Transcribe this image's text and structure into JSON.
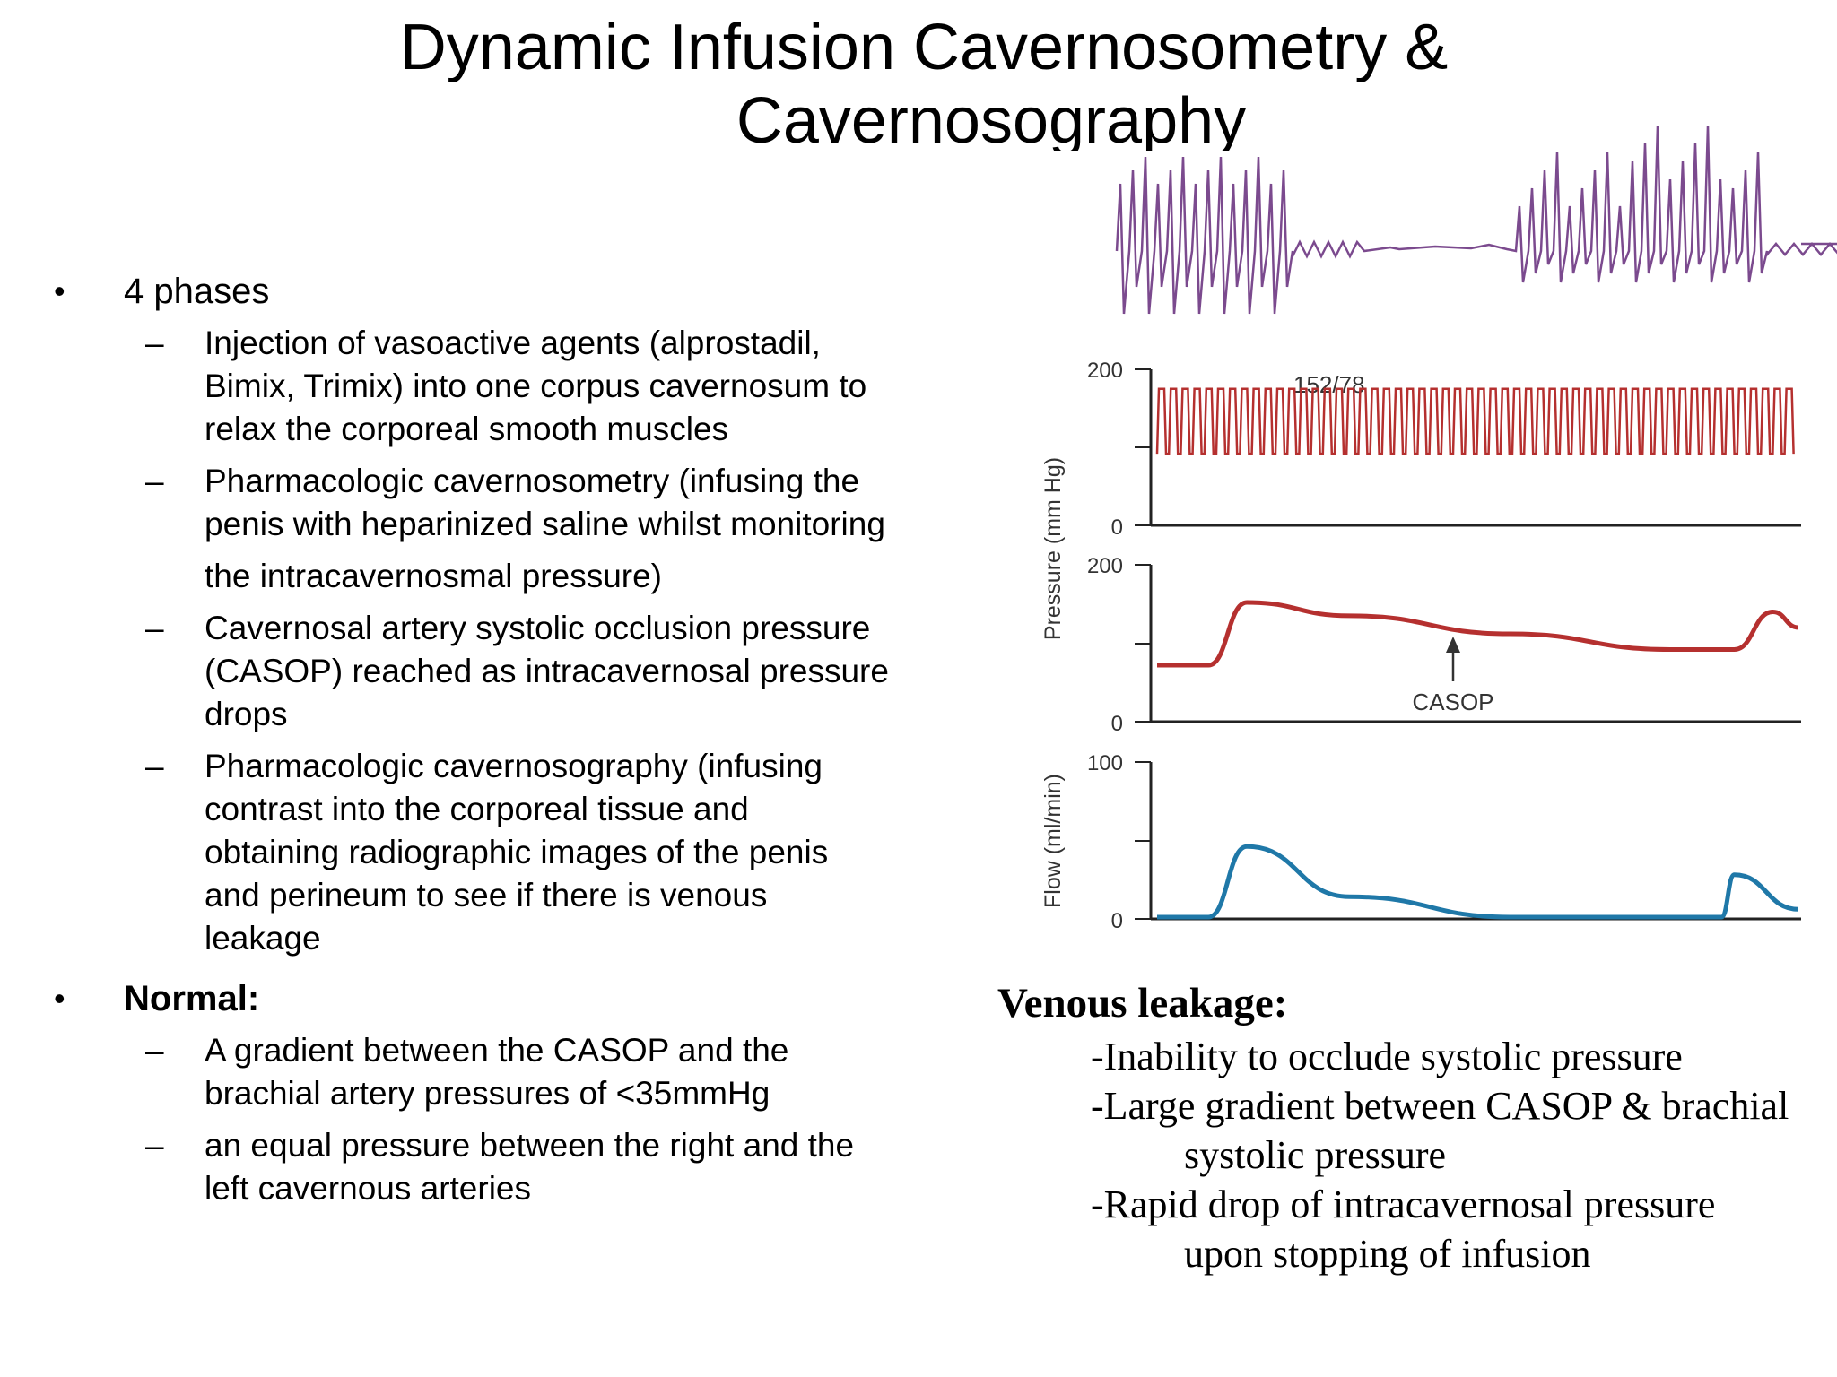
{
  "slide": {
    "title_line1": "Dynamic Infusion Cavernosometry &",
    "title_line2": "Cavernosography"
  },
  "bullets": [
    {
      "text": "4 phases",
      "bold": false,
      "subs": [
        [
          "Injection of vasoactive agents (alprostadil,",
          "Bimix, Trimix) into one corpus cavernosum to",
          "relax the corporeal smooth muscles"
        ],
        [
          "Pharmacologic cavernosometry (infusing the",
          "penis with heparinized saline whilst monitoring",
          "the intracavernosmal pressure)"
        ],
        [
          "Cavernosal artery systolic occlusion pressure",
          "(CASOP) reached as intracavernosal pressure",
          "drops"
        ],
        [
          "Pharmacologic cavernosography (infusing",
          "contrast into the corporeal tissue and",
          "obtaining radiographic images of the penis",
          "and perineum to see if there is venous",
          "leakage"
        ]
      ]
    },
    {
      "text": "Normal:",
      "bold": true,
      "subs": [
        [
          "A gradient between the CASOP and the",
          "brachial artery pressures of <35mmHg"
        ],
        [
          "an equal pressure between the right and the",
          "left cavernous arteries"
        ]
      ]
    }
  ],
  "venous": {
    "heading": "Venous leakage:",
    "items": [
      "-Inability to occlude systolic pressure",
      "-Large gradient between CASOP & brachial",
      "systolic pressure",
      "-Rapid drop of intracavernosal pressure",
      "upon stopping of infusion"
    ]
  },
  "chart_data": [
    {
      "type": "line",
      "series": [
        {
          "color": "#7b4a8e"
        }
      ],
      "grid": false
    },
    {
      "type": "line",
      "ylabel": "Pressure (mm Hg)",
      "ylim": [
        0,
        200
      ],
      "yticks": [
        "200",
        "0"
      ],
      "annotation": "152/78",
      "series": [
        {
          "systolic": 152,
          "diastolic": 78,
          "color": "#b5302f"
        }
      ]
    },
    {
      "type": "line",
      "ylim": [
        0,
        200
      ],
      "yticks": [
        "200",
        "0"
      ],
      "annotation": "CASOP",
      "series": [
        {
          "color": "#b5302f",
          "x": [
            0,
            8,
            14,
            30,
            55,
            80,
            90,
            96,
            100
          ],
          "y": [
            72,
            72,
            152,
            135,
            112,
            92,
            92,
            140,
            120
          ]
        }
      ]
    },
    {
      "type": "line",
      "ylabel": "Flow (ml/min)",
      "ylim": [
        0,
        100
      ],
      "yticks": [
        "100",
        "0"
      ],
      "series": [
        {
          "color": "#1f78a8",
          "x": [
            0,
            8,
            14,
            30,
            55,
            80,
            88,
            90,
            100
          ],
          "y": [
            0,
            0,
            45,
            13,
            0,
            0,
            0,
            27,
            5
          ]
        }
      ]
    }
  ]
}
